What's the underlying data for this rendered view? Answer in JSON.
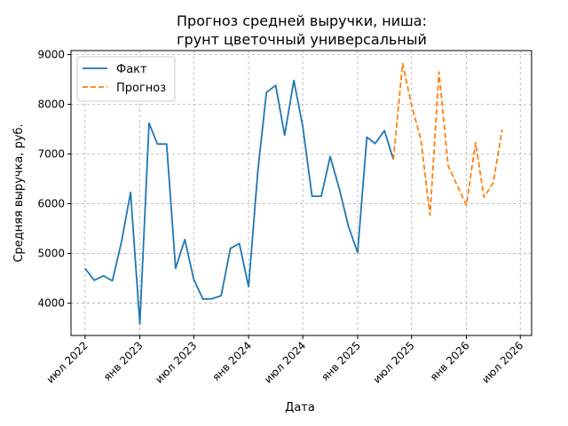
{
  "chart_data": {
    "type": "line",
    "title_line1": "Прогноз средней выручки, ниша:",
    "title_line2": "грунт цветочный универсальный",
    "xlabel": "Дата",
    "ylabel": "Средняя выручка, руб.",
    "ylim": [
      3350,
      9080
    ],
    "yticks": [
      4000,
      5000,
      6000,
      7000,
      8000,
      9000
    ],
    "xlim": [
      "2022-05-15",
      "2026-08-08"
    ],
    "xticks": [
      {
        "date": "2022-07-01",
        "label": "июл 2022"
      },
      {
        "date": "2023-01-01",
        "label": "янв 2023"
      },
      {
        "date": "2023-07-01",
        "label": "июл 2023"
      },
      {
        "date": "2024-01-01",
        "label": "янв 2024"
      },
      {
        "date": "2024-07-01",
        "label": "июл 2024"
      },
      {
        "date": "2025-01-01",
        "label": "янв 2025"
      },
      {
        "date": "2025-07-01",
        "label": "июл 2025"
      },
      {
        "date": "2026-01-01",
        "label": "янв 2026"
      },
      {
        "date": "2026-07-01",
        "label": "июл 2026"
      }
    ],
    "grid": true,
    "legend_position": "top-left",
    "series": [
      {
        "name": "Факт",
        "color": "#1f77b4",
        "style": "solid",
        "x": [
          "2022-07-01",
          "2022-08-01",
          "2022-09-01",
          "2022-10-01",
          "2022-11-01",
          "2022-12-01",
          "2023-01-01",
          "2023-02-01",
          "2023-03-01",
          "2023-04-01",
          "2023-05-01",
          "2023-06-01",
          "2023-07-01",
          "2023-08-01",
          "2023-09-01",
          "2023-10-01",
          "2023-11-01",
          "2023-12-01",
          "2024-01-01",
          "2024-02-01",
          "2024-03-01",
          "2024-04-01",
          "2024-05-01",
          "2024-06-01",
          "2024-07-01",
          "2024-08-01",
          "2024-09-01",
          "2024-10-01",
          "2024-11-01",
          "2024-12-01",
          "2025-01-01",
          "2025-02-01",
          "2025-03-01",
          "2025-04-01",
          "2025-05-01"
        ],
        "values": [
          4700,
          4460,
          4550,
          4450,
          5250,
          6230,
          3580,
          7620,
          7200,
          7200,
          4700,
          5280,
          4480,
          4080,
          4090,
          4150,
          5100,
          5200,
          4330,
          6650,
          8240,
          8380,
          7380,
          8480,
          7550,
          6150,
          6150,
          6950,
          6290,
          5550,
          5020,
          7340,
          7210,
          7470,
          6890
        ]
      },
      {
        "name": "Прогноз",
        "color": "#ff7f0e",
        "style": "dashed",
        "x": [
          "2025-05-01",
          "2025-06-01",
          "2025-07-01",
          "2025-08-01",
          "2025-09-01",
          "2025-10-01",
          "2025-11-01",
          "2025-12-01",
          "2026-01-01",
          "2026-02-01",
          "2026-03-01",
          "2026-04-01",
          "2026-05-01"
        ],
        "values": [
          6890,
          8820,
          7980,
          7300,
          5770,
          8650,
          6760,
          6370,
          5970,
          7230,
          6130,
          6420,
          7490
        ]
      }
    ]
  }
}
